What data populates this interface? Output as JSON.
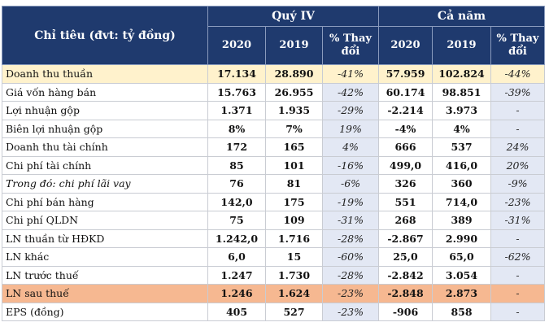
{
  "header": {
    "label": "Chỉ tiêu (đvt: tỷ đồng)",
    "group_q4": "Quý IV",
    "group_year": "Cả năm",
    "col_2020": "2020",
    "col_2019": "2019",
    "col_change": "% Thay đổi"
  },
  "rows": [
    {
      "label": "Doanh thu thuần",
      "q4_2020": "17.134",
      "q4_2019": "28.890",
      "q4_chg": "-41%",
      "y_2020": "57.959",
      "y_2019": "102.824",
      "y_chg": "-44%"
    },
    {
      "label": "Giá vốn hàng bán",
      "q4_2020": "15.763",
      "q4_2019": "26.955",
      "q4_chg": "-42%",
      "y_2020": "60.174",
      "y_2019": "98.851",
      "y_chg": "-39%"
    },
    {
      "label": "Lợi nhuận gộp",
      "q4_2020": "1.371",
      "q4_2019": "1.935",
      "q4_chg": "-29%",
      "y_2020": "-2.214",
      "y_2019": "3.973",
      "y_chg": "-"
    },
    {
      "label": "Biên lợi nhuận gộp",
      "q4_2020": "8%",
      "q4_2019": "7%",
      "q4_chg": "19%",
      "y_2020": "-4%",
      "y_2019": "4%",
      "y_chg": "-"
    },
    {
      "label": "Doanh thu tài chính",
      "q4_2020": "172",
      "q4_2019": "165",
      "q4_chg": "4%",
      "y_2020": "666",
      "y_2019": "537",
      "y_chg": "24%"
    },
    {
      "label": "Chi phí tài chính",
      "q4_2020": "85",
      "q4_2019": "101",
      "q4_chg": "-16%",
      "y_2020": "499,0",
      "y_2019": "416,0",
      "y_chg": "20%"
    },
    {
      "label": "Trong đó: chi phí lãi vay",
      "q4_2020": "76",
      "q4_2019": "81",
      "q4_chg": "-6%",
      "y_2020": "326",
      "y_2019": "360",
      "y_chg": "-9%"
    },
    {
      "label": "Chi phí bán hàng",
      "q4_2020": "142,0",
      "q4_2019": "175",
      "q4_chg": "-19%",
      "y_2020": "551",
      "y_2019": "714,0",
      "y_chg": "-23%"
    },
    {
      "label": "Chi phí QLDN",
      "q4_2020": "75",
      "q4_2019": "109",
      "q4_chg": "-31%",
      "y_2020": "268",
      "y_2019": "389",
      "y_chg": "-31%"
    },
    {
      "label": "LN thuần từ HĐKD",
      "q4_2020": "1.242,0",
      "q4_2019": "1.716",
      "q4_chg": "-28%",
      "y_2020": "-2.867",
      "y_2019": "2.990",
      "y_chg": "-"
    },
    {
      "label": "LN khác",
      "q4_2020": "6,0",
      "q4_2019": "15",
      "q4_chg": "-60%",
      "y_2020": "25,0",
      "y_2019": "65,0",
      "y_chg": "-62%"
    },
    {
      "label": "LN trước thuế",
      "q4_2020": "1.247",
      "q4_2019": "1.730",
      "q4_chg": "-28%",
      "y_2020": "-2.842",
      "y_2019": "3.054",
      "y_chg": "-"
    },
    {
      "label": "LN sau thuế",
      "q4_2020": "1.246",
      "q4_2019": "1.624",
      "q4_chg": "-23%",
      "y_2020": "-2.848",
      "y_2019": "2.873",
      "y_chg": "-"
    },
    {
      "label": "EPS (đồng)",
      "q4_2020": "405",
      "q4_2019": "527",
      "q4_chg": "-23%",
      "y_2020": "-906",
      "y_2019": "858",
      "y_chg": "-"
    }
  ],
  "colors": {
    "header_bg": "#1f3a6e",
    "pct_bg": "#e3e8f4",
    "highlight_revenue": "#fff2cc",
    "highlight_profit": "#f6b891"
  }
}
